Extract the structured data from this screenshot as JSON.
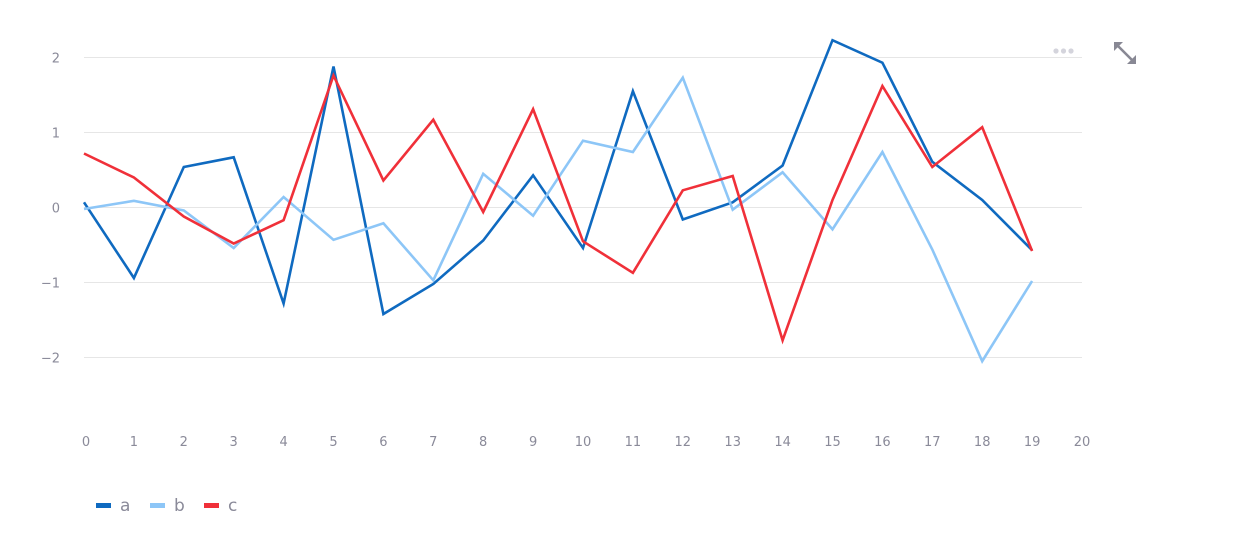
{
  "toolbar": {
    "menu_icon": "more-dots-icon",
    "fullscreen_icon": "fullscreen-expand-icon"
  },
  "chart_data": {
    "type": "line",
    "title": "",
    "xlabel": "",
    "ylabel": "",
    "x": [
      0,
      1,
      2,
      3,
      4,
      5,
      6,
      7,
      8,
      9,
      10,
      11,
      12,
      13,
      14,
      15,
      16,
      17,
      18,
      19
    ],
    "xlim": [
      0,
      20
    ],
    "ylim": [
      -2.7,
      2.3
    ],
    "x_ticks": [
      0,
      1,
      2,
      3,
      4,
      5,
      6,
      7,
      8,
      9,
      10,
      11,
      12,
      13,
      14,
      15,
      16,
      17,
      18,
      19,
      20
    ],
    "y_ticks": [
      2,
      1,
      0,
      -1,
      -2
    ],
    "y_tick_labels": [
      "2",
      "1",
      "0",
      "−1",
      "−2"
    ],
    "grid": true,
    "legend_position": "bottom-left",
    "series": [
      {
        "name": "a",
        "color": "#0f6ac0",
        "values": [
          0.07,
          -0.94,
          0.54,
          0.67,
          -1.28,
          1.88,
          -1.42,
          -1.02,
          -0.44,
          0.43,
          -0.54,
          1.55,
          -0.16,
          0.07,
          0.56,
          2.23,
          1.93,
          0.61,
          0.1,
          -0.57
        ]
      },
      {
        "name": "b",
        "color": "#8dc6f7",
        "values": [
          -0.02,
          0.09,
          -0.04,
          -0.54,
          0.14,
          -0.43,
          -0.21,
          -0.97,
          0.45,
          -0.11,
          0.89,
          0.74,
          1.73,
          -0.03,
          0.47,
          -0.29,
          0.74,
          -0.56,
          -2.05,
          -0.98
        ]
      },
      {
        "name": "c",
        "color": "#f03039",
        "values": [
          0.72,
          0.4,
          -0.12,
          -0.48,
          -0.17,
          1.76,
          0.36,
          1.17,
          -0.06,
          1.31,
          -0.45,
          -0.87,
          0.23,
          0.42,
          -1.77,
          0.1,
          1.62,
          0.54,
          1.07,
          -0.58
        ]
      }
    ]
  }
}
